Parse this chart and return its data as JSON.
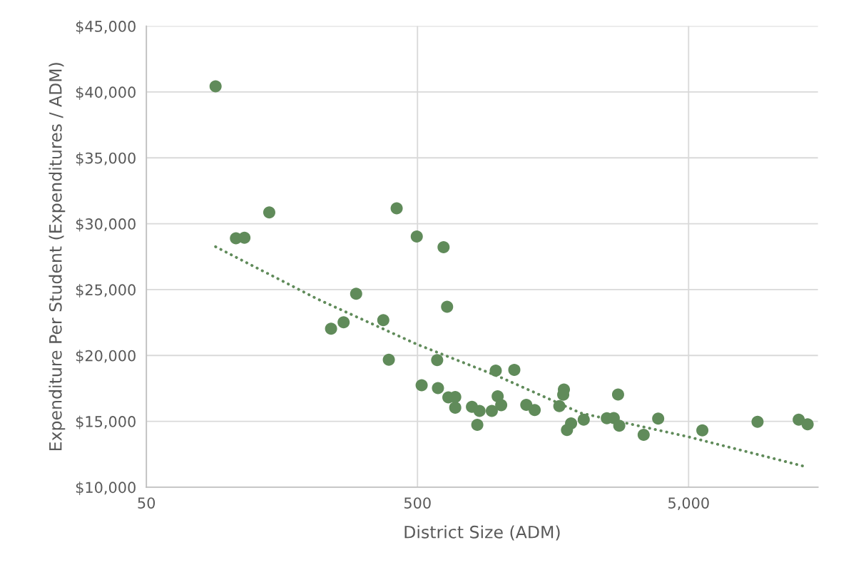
{
  "chart_data": {
    "type": "scatter",
    "xlabel": "District Size (ADM)",
    "ylabel": "Expenditure Per Student (Expenditures / ADM)",
    "log": "x",
    "grid": true,
    "marker": "circle",
    "xlim": [
      50,
      15000
    ],
    "xticks": [
      50,
      500,
      {
        "value": 5000,
        "label": "5,000"
      }
    ],
    "ylim": [
      10000,
      45000
    ],
    "yticks": [
      {
        "value": 10000,
        "label": "$10,000"
      },
      {
        "value": 15000,
        "label": "$15,000"
      },
      {
        "value": 20000,
        "label": "$20,000"
      },
      {
        "value": 25000,
        "label": "$25,000"
      },
      {
        "value": 30000,
        "label": "$30,000"
      },
      {
        "value": 35000,
        "label": "$35,000"
      },
      {
        "value": 40000,
        "label": "$40,000"
      },
      {
        "value": 45000,
        "label": "$45,000"
      }
    ],
    "series": [
      {
        "color": "#608b5a",
        "x": [
          90,
          107,
          115,
          142,
          419,
          497,
          624,
          297,
          643,
          240,
          267,
          374,
          392,
          591,
          518,
          595,
          650,
          689,
          689,
          794,
          847,
          831,
          940,
          972,
          988,
          1018,
          1138,
          1260,
          1353,
          1668,
          1734,
          1724,
          1843,
          1780,
          2052,
          2497,
          2648,
          2775,
          2747,
          3414,
          3862,
          5620,
          8980,
          12740,
          13740
        ],
        "values": [
          40430,
          28900,
          28940,
          30860,
          31170,
          29030,
          28220,
          24680,
          23690,
          22030,
          22520,
          22680,
          19680,
          19650,
          17740,
          17520,
          16820,
          16850,
          16040,
          16100,
          15790,
          14730,
          15790,
          18850,
          16900,
          16230,
          18910,
          16250,
          15860,
          16150,
          17410,
          17020,
          14840,
          14340,
          15130,
          15230,
          15250,
          14670,
          17040,
          13970,
          15210,
          14310,
          14960,
          15130,
          14770
        ]
      },
      {
        "type": "line",
        "color": "#608b5a",
        "line_style": "dotted",
        "marker": "none",
        "x": [
          90,
          214,
          500,
          1000,
          2000,
          5000,
          13550
        ],
        "values": [
          28250,
          24280,
          20830,
          18390,
          15630,
          13820,
          11550
        ]
      }
    ]
  }
}
